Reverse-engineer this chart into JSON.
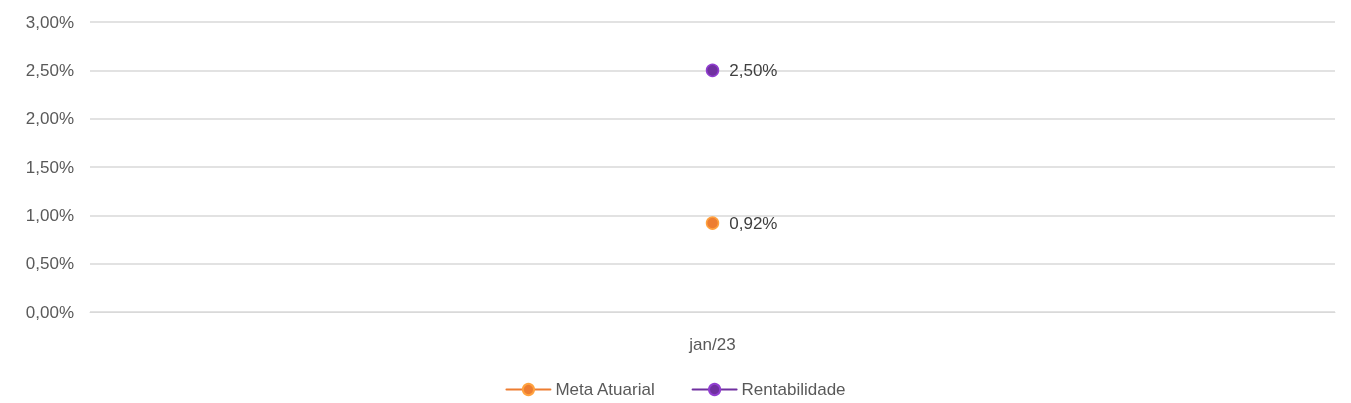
{
  "chart_data": {
    "type": "line",
    "categories": [
      "jan/23"
    ],
    "series": [
      {
        "name": "Meta Atuarial",
        "color": "#ed7d31",
        "values": [
          0.92
        ],
        "value_labels": [
          "0,92%"
        ]
      },
      {
        "name": "Rentabilidade",
        "color": "#7030a0",
        "values": [
          2.5
        ],
        "value_labels": [
          "2,50%"
        ]
      }
    ],
    "ylim": [
      0,
      3
    ],
    "yticks": [
      {
        "value": 0,
        "label": "0,00%"
      },
      {
        "value": 0.5,
        "label": "0,50%"
      },
      {
        "value": 1,
        "label": "1,00%"
      },
      {
        "value": 1.5,
        "label": "1,50%"
      },
      {
        "value": 2,
        "label": "2,00%"
      },
      {
        "value": 2.5,
        "label": "2,50%"
      },
      {
        "value": 3,
        "label": "3,00%"
      }
    ],
    "grid": "y",
    "legend": "bottom",
    "marker": "circle",
    "line_style": "solid"
  }
}
